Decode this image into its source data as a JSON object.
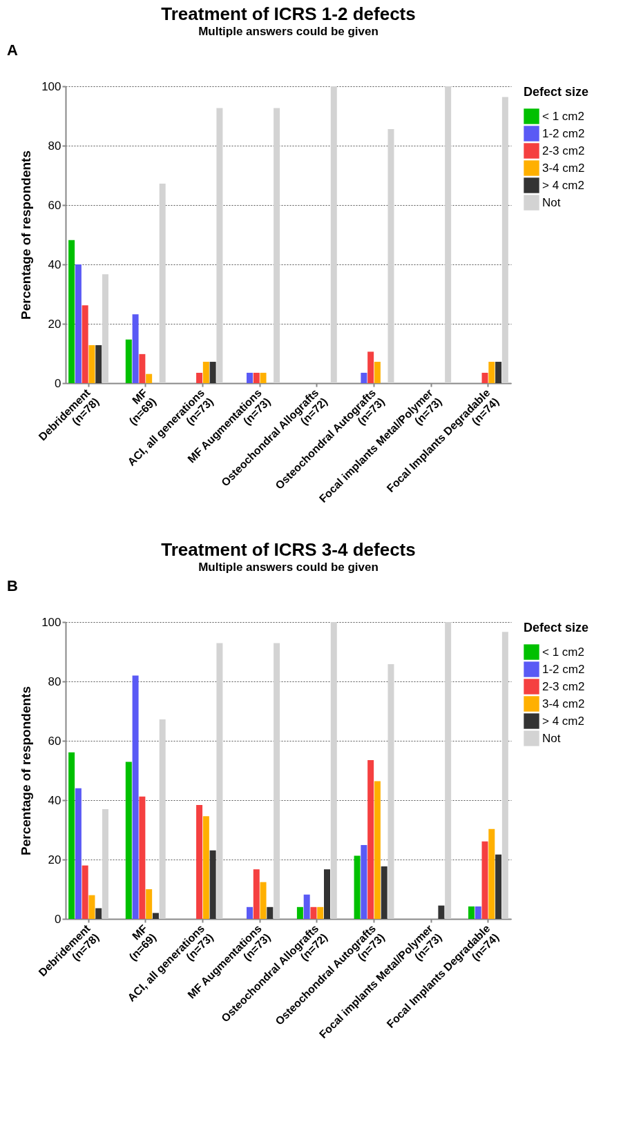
{
  "chart_data": [
    {
      "type": "bar",
      "title": "Treatment of  ICRS 1-2 defects",
      "subtitle": "Multiple answers could be given",
      "ylabel": "Percentage of respondents",
      "legend_title": "Defect size",
      "annotations": [
        "A"
      ],
      "categories": [
        "Debridement\n(n=78)",
        "MF\n(n=69)",
        "ACI, all generations\n(n=73)",
        "MF Augmentations\n(n=73)",
        "Osteochondral Allografts\n(n=72)",
        "Osteochondral Autografts\n(n=73)",
        "Focal implants Metal/Polymer\n(n=73)",
        "Focal Implants Degradable\n(n=74)"
      ],
      "series": [
        {
          "name": "< 1 cm2",
          "color": "#00c000",
          "values": [
            48.2,
            14.7,
            0,
            0,
            0,
            0,
            0,
            0
          ]
        },
        {
          "name": "1-2 cm2",
          "color": "#5a5af5",
          "values": [
            40,
            23.2,
            0,
            3.5,
            0,
            3.5,
            0,
            0
          ]
        },
        {
          "name": "2-3 cm2",
          "color": "#f54040",
          "values": [
            26.2,
            9.8,
            3.5,
            3.5,
            0,
            10.6,
            0,
            3.5
          ]
        },
        {
          "name": "3-4 cm2",
          "color": "#ffb000",
          "values": [
            12.8,
            3.1,
            7.2,
            3.5,
            0,
            7.2,
            0,
            7.2
          ]
        },
        {
          "name": "> 4 cm2",
          "color": "#333333",
          "values": [
            12.8,
            0,
            7.2,
            0,
            0,
            0,
            0,
            7.2
          ]
        },
        {
          "name": "Not",
          "color": "#d3d3d3",
          "values": [
            36.7,
            67.2,
            92.7,
            92.7,
            100,
            85.6,
            100,
            96.4
          ]
        }
      ],
      "ylim": [
        0,
        100
      ],
      "yticks": [
        0,
        20,
        40,
        60,
        80,
        100
      ],
      "grid": "y",
      "legend": "top right"
    },
    {
      "type": "bar",
      "title": "Treatment of  ICRS 3-4 defects",
      "subtitle": "Multiple answers could be given",
      "ylabel": "Percentage of respondents",
      "legend_title": "Defect size",
      "annotations": [
        "B"
      ],
      "categories": [
        "Debridement\n(n=78)",
        "MF\n(n=69)",
        "ACI, all generations\n(n=73)",
        "MF Augmentations\n(n=73)",
        "Osteochondral Allografts\n(n=72)",
        "Osteochondral Autografts\n(n=73)",
        "Focal implants Metal/Polymer\n(n=73)",
        "Focal Implants Degradable\n(n=74)"
      ],
      "series": [
        {
          "name": "< 1 cm2",
          "color": "#00c000",
          "values": [
            56.1,
            52.9,
            0,
            0,
            4.0,
            21.3,
            0,
            4.2
          ]
        },
        {
          "name": "1-2 cm2",
          "color": "#5a5af5",
          "values": [
            44.0,
            82.0,
            0,
            4.0,
            8.2,
            24.9,
            0,
            4.2
          ]
        },
        {
          "name": "2-3 cm2",
          "color": "#f54040",
          "values": [
            18.0,
            41.2,
            38.4,
            16.7,
            4.0,
            53.5,
            0,
            26.1
          ]
        },
        {
          "name": "3-4 cm2",
          "color": "#ffb000",
          "values": [
            8.0,
            10.0,
            34.6,
            12.4,
            4.0,
            46.4,
            0,
            30.3
          ]
        },
        {
          "name": "> 4 cm2",
          "color": "#333333",
          "values": [
            3.6,
            2.0,
            23.1,
            4.0,
            16.7,
            17.7,
            4.5,
            21.7
          ]
        },
        {
          "name": "Not",
          "color": "#d3d3d3",
          "values": [
            37.0,
            67.2,
            92.9,
            92.9,
            100,
            85.8,
            100,
            96.7
          ]
        }
      ],
      "ylim": [
        0,
        100
      ],
      "yticks": [
        0,
        20,
        40,
        60,
        80,
        100
      ],
      "grid": "y",
      "legend": "top right"
    }
  ]
}
